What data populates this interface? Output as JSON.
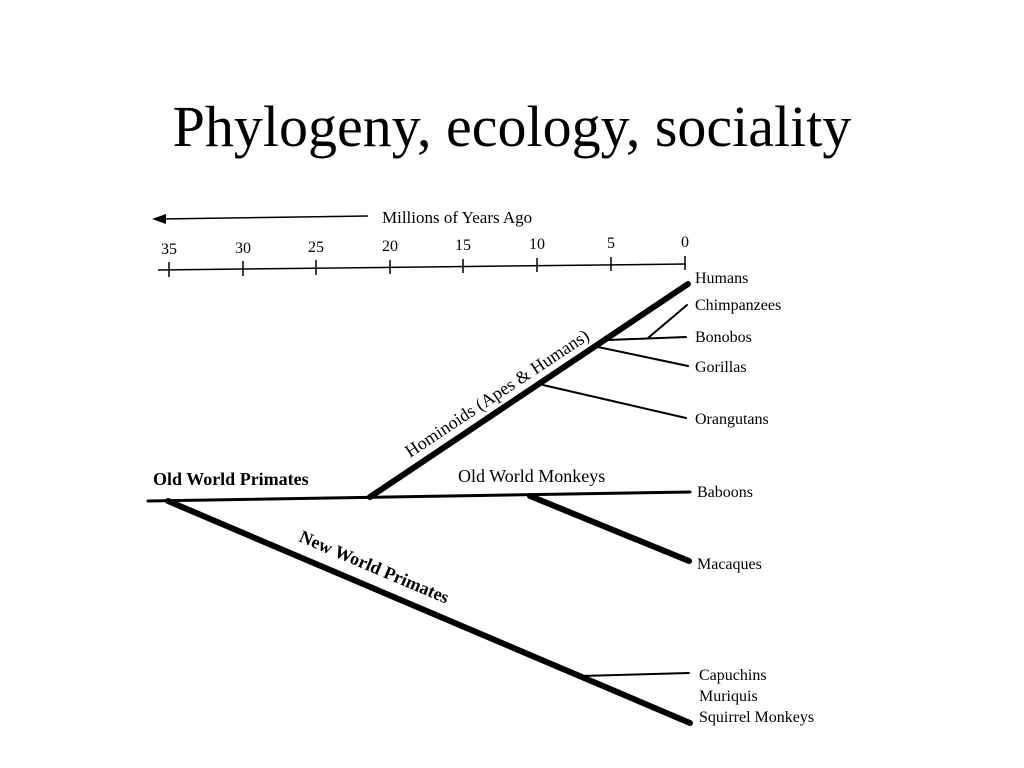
{
  "slide": {
    "title": "Phylogeny, ecology, sociality"
  },
  "axis": {
    "label": "Millions of Years Ago",
    "ticks": [
      "35",
      "30",
      "25",
      "20",
      "15",
      "10",
      "5",
      "0"
    ]
  },
  "clades": {
    "old_world_primates": "Old World Primates",
    "hominoids": "Hominoids (Apes & Humans)",
    "old_world_monkeys": "Old World Monkeys",
    "new_world_primates": "New World Primates"
  },
  "leaves": {
    "humans": "Humans",
    "chimpanzees": "Chimpanzees",
    "bonobos": "Bonobos",
    "gorillas": "Gorillas",
    "orangutans": "Orangutans",
    "baboons": "Baboons",
    "macaques": "Macaques",
    "capuchins": "Capuchins",
    "muriquis": "Muriquis",
    "squirrel_monkeys": "Squirrel Monkeys"
  }
}
